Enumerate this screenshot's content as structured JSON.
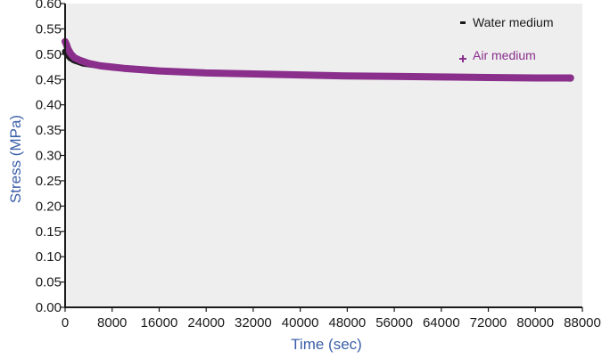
{
  "chart_data": {
    "type": "line",
    "xlabel": "Time (sec)",
    "ylabel": "Stress (MPa)",
    "xlim": [
      0,
      88000
    ],
    "ylim": [
      0,
      0.6
    ],
    "x_ticks": [
      "0",
      "8000",
      "16000",
      "24000",
      "32000",
      "40000",
      "48000",
      "56000",
      "64000",
      "72000",
      "80000",
      "88000"
    ],
    "y_ticks": [
      "0.00",
      "0.05",
      "0.10",
      "0.15",
      "0.20",
      "0.25",
      "0.30",
      "0.35",
      "0.40",
      "0.45",
      "0.50",
      "0.55",
      "0.60"
    ],
    "grid": false,
    "legend_position": "top-right",
    "colors": {
      "plot_bg": "#eeeeee",
      "axis_label": "#3b5fa8",
      "water": "#1a1a1a",
      "air": "#8a2f8c"
    },
    "series": [
      {
        "name": "Water medium",
        "marker": "dash",
        "x": [
          0,
          300,
          800,
          1500,
          3000,
          6000,
          10000,
          16000,
          24000,
          32000,
          40000,
          48000,
          56000,
          64000,
          72000,
          80000,
          86000
        ],
        "y": [
          0.505,
          0.5,
          0.493,
          0.488,
          0.482,
          0.477,
          0.472,
          0.467,
          0.463,
          0.461,
          0.459,
          0.457,
          0.456,
          0.455,
          0.454,
          0.453,
          0.452
        ]
      },
      {
        "name": "Air medium",
        "marker": "plus",
        "x": [
          0,
          200,
          500,
          1000,
          1600,
          2500,
          4000,
          6000,
          10000,
          16000,
          24000,
          32000,
          40000,
          48000,
          56000,
          64000,
          72000,
          80000,
          86000
        ],
        "y": [
          0.525,
          0.52,
          0.51,
          0.5,
          0.493,
          0.488,
          0.482,
          0.477,
          0.472,
          0.467,
          0.463,
          0.461,
          0.459,
          0.457,
          0.456,
          0.455,
          0.454,
          0.453,
          0.453
        ]
      }
    ]
  }
}
